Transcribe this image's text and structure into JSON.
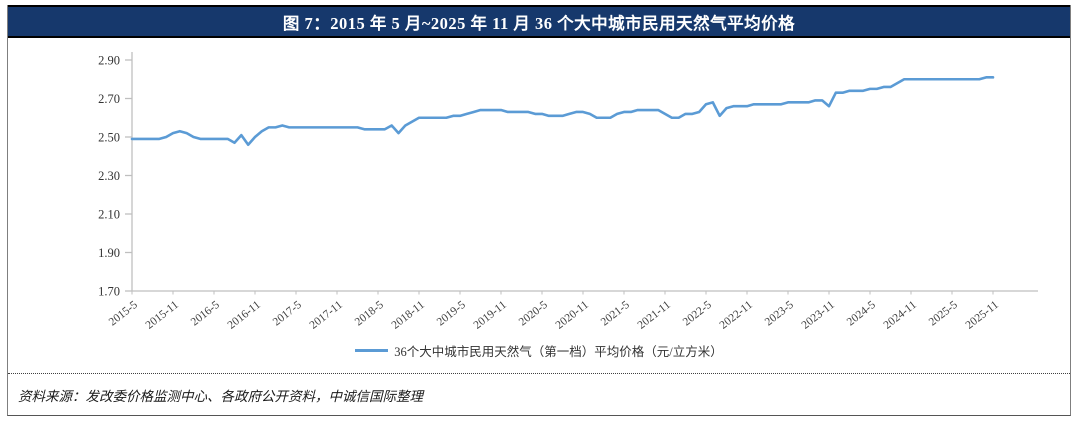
{
  "figure": {
    "title": "图 7：2015 年 5 月~2025 年 11 月 36 个大中城市民用天然气平均价格",
    "source_note": "资料来源：发改委价格监测中心、各政府公开资料，中诚信国际整理"
  },
  "colors": {
    "title_bar_bg": "#16386c",
    "title_text": "#ffffff",
    "series_line": "#5b9bd5",
    "axis": "#bfbfbf",
    "tick_label": "#404040"
  },
  "chart_data": {
    "type": "line",
    "title": "图 7：2015 年 5 月~2025 年 11 月 36 个大中城市民用天然气平均价格",
    "xlabel": "",
    "ylabel": "",
    "ylim": [
      1.7,
      2.9
    ],
    "y_ticks": [
      1.7,
      1.9,
      2.1,
      2.3,
      2.5,
      2.7,
      2.9
    ],
    "x_start": "2015-5",
    "x_end": "2025-11",
    "frequency": "monthly",
    "x_tick_every": 6,
    "x_tick_labels": [
      "2015-5",
      "2015-11",
      "2016-5",
      "2016-11",
      "2017-5",
      "2017-11",
      "2018-5",
      "2018-11",
      "2019-5",
      "2019-11",
      "2020-5",
      "2020-11",
      "2021-5",
      "2021-11",
      "2022-5",
      "2022-11",
      "2023-5",
      "2023-11",
      "2024-5",
      "2024-11",
      "2025-5",
      "2025-11"
    ],
    "legend_position": "bottom",
    "grid": false,
    "series": [
      {
        "name": "36个大中城市民用天然气（第一档）平均价格（元/立方米）",
        "color": "#5b9bd5",
        "values": [
          2.49,
          2.49,
          2.49,
          2.49,
          2.49,
          2.5,
          2.52,
          2.53,
          2.52,
          2.5,
          2.49,
          2.49,
          2.49,
          2.49,
          2.49,
          2.47,
          2.51,
          2.46,
          2.5,
          2.53,
          2.55,
          2.55,
          2.56,
          2.55,
          2.55,
          2.55,
          2.55,
          2.55,
          2.55,
          2.55,
          2.55,
          2.55,
          2.55,
          2.55,
          2.54,
          2.54,
          2.54,
          2.54,
          2.56,
          2.52,
          2.56,
          2.58,
          2.6,
          2.6,
          2.6,
          2.6,
          2.6,
          2.61,
          2.61,
          2.62,
          2.63,
          2.64,
          2.64,
          2.64,
          2.64,
          2.63,
          2.63,
          2.63,
          2.63,
          2.62,
          2.62,
          2.61,
          2.61,
          2.61,
          2.62,
          2.63,
          2.63,
          2.62,
          2.6,
          2.6,
          2.6,
          2.62,
          2.63,
          2.63,
          2.64,
          2.64,
          2.64,
          2.64,
          2.62,
          2.6,
          2.6,
          2.62,
          2.62,
          2.63,
          2.67,
          2.68,
          2.61,
          2.65,
          2.66,
          2.66,
          2.66,
          2.67,
          2.67,
          2.67,
          2.67,
          2.67,
          2.68,
          2.68,
          2.68,
          2.68,
          2.69,
          2.69,
          2.66,
          2.73,
          2.73,
          2.74,
          2.74,
          2.74,
          2.75,
          2.75,
          2.76,
          2.76,
          2.78,
          2.8,
          2.8,
          2.8,
          2.8,
          2.8,
          2.8,
          2.8,
          2.8,
          2.8,
          2.8,
          2.8,
          2.8,
          2.81,
          2.81
        ]
      }
    ]
  }
}
